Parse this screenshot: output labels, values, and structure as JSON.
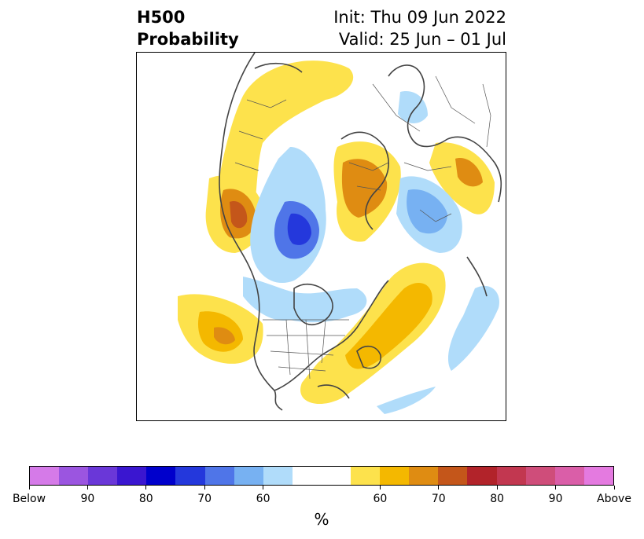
{
  "title": {
    "left_line1": "H500",
    "left_line2": "Probability",
    "right_line1": "Init: Thu 09 Jun 2022",
    "right_line2": "Valid: 25 Jun – 01 Jul"
  },
  "colorbar": {
    "label": "%",
    "colors": [
      "#d57ae8",
      "#9b55e0",
      "#6a37d8",
      "#3a16d0",
      "#0000cc",
      "#2438dc",
      "#4f75e8",
      "#77b1f2",
      "#b0dcfa",
      "#ffffff",
      "#ffffff",
      "#fde24c",
      "#f4b800",
      "#df8c12",
      "#c4561a",
      "#b2232a",
      "#c23750",
      "#cf4d7a",
      "#da5ea8",
      "#e47ae0"
    ],
    "ticks": [
      {
        "label": "Below",
        "frac": 0.0
      },
      {
        "label": "90",
        "frac": 0.1
      },
      {
        "label": "80",
        "frac": 0.2
      },
      {
        "label": "70",
        "frac": 0.3
      },
      {
        "label": "60",
        "frac": 0.4
      },
      {
        "label": "60",
        "frac": 0.6
      },
      {
        "label": "70",
        "frac": 0.7
      },
      {
        "label": "80",
        "frac": 0.8
      },
      {
        "label": "90",
        "frac": 0.9
      },
      {
        "label": "Above",
        "frac": 1.0
      }
    ]
  },
  "map": {
    "land_outline_color": "#444444",
    "border_color": "#555555"
  }
}
